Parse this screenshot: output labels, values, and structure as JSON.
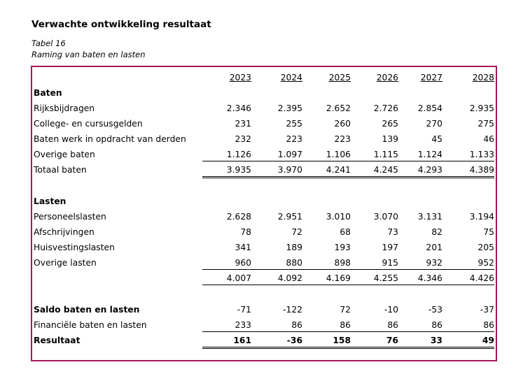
{
  "title": "Verwachte ontwikkeling resultaat",
  "caption_line1": "Tabel 16",
  "caption_line2": "Raming van baten en lasten",
  "colors": {
    "frame": "#a3195b"
  },
  "years": [
    "2023",
    "2024",
    "2025",
    "2026",
    "2027",
    "2028"
  ],
  "baten": {
    "heading": "Baten",
    "rows": [
      {
        "label": "Rijksbijdragen",
        "values": [
          "2.346",
          "2.395",
          "2.652",
          "2.726",
          "2.854",
          "2.935"
        ]
      },
      {
        "label": "College- en cursusgelden",
        "values": [
          "231",
          "255",
          "260",
          "265",
          "270",
          "275"
        ]
      },
      {
        "label": "Baten werk in opdracht van derden",
        "values": [
          "232",
          "223",
          "223",
          "139",
          "45",
          "46"
        ]
      },
      {
        "label": "Overige baten",
        "values": [
          "1.126",
          "1.097",
          "1.106",
          "1.115",
          "1.124",
          "1.133"
        ]
      }
    ],
    "total": {
      "label": "Totaal baten",
      "values": [
        "3.935",
        "3.970",
        "4.241",
        "4.245",
        "4.293",
        "4.389"
      ]
    }
  },
  "lasten": {
    "heading": "Lasten",
    "rows": [
      {
        "label": "Personeelslasten",
        "values": [
          "2.628",
          "2.951",
          "3.010",
          "3.070",
          "3.131",
          "3.194"
        ]
      },
      {
        "label": "Afschrijvingen",
        "values": [
          "78",
          "72",
          "68",
          "73",
          "82",
          "75"
        ]
      },
      {
        "label": "Huisvestingslasten",
        "values": [
          "341",
          "189",
          "193",
          "197",
          "201",
          "205"
        ]
      },
      {
        "label": "Overige lasten",
        "values": [
          "960",
          "880",
          "898",
          "915",
          "932",
          "952"
        ]
      }
    ],
    "total": {
      "label": "",
      "values": [
        "4.007",
        "4.092",
        "4.169",
        "4.255",
        "4.346",
        "4.426"
      ]
    }
  },
  "saldo": {
    "label": "Saldo baten en lasten",
    "values": [
      "-71",
      "-122",
      "72",
      "-10",
      "-53",
      "-37"
    ]
  },
  "financieel": {
    "label": "Financiële baten en lasten",
    "values": [
      "233",
      "86",
      "86",
      "86",
      "86",
      "86"
    ]
  },
  "resultaat": {
    "label": "Resultaat",
    "values": [
      "161",
      "-36",
      "158",
      "76",
      "33",
      "49"
    ]
  }
}
